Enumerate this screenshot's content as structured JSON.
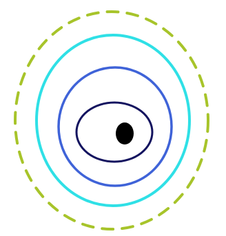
{
  "diagram": {
    "background_color": "#ffffff",
    "rings": [
      {
        "name": "dashed-outer-ring",
        "style": "dashed",
        "color": "#a7c42a"
      },
      {
        "name": "cyan-ring",
        "style": "solid",
        "color": "#2fe0e6"
      },
      {
        "name": "blue-ring",
        "style": "solid",
        "color": "#3f63d8"
      },
      {
        "name": "navy-ring",
        "style": "solid",
        "color": "#13135f"
      }
    ],
    "center_dot": {
      "name": "center-dot",
      "color": "#000000"
    }
  }
}
